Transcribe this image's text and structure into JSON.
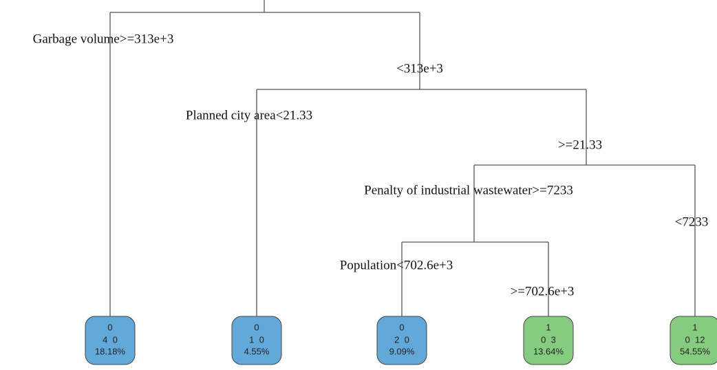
{
  "splits": [
    {
      "label": "Garbage volume>=313e+3"
    },
    {
      "label": "<313e+3"
    },
    {
      "label": "Planned city area<21.33"
    },
    {
      "label": ">=21.33"
    },
    {
      "label": "Penalty of industrial wastewater>=7233"
    },
    {
      "label": "<7233"
    },
    {
      "label": "Population<702.6e+3"
    },
    {
      "label": ">=702.6e+3"
    }
  ],
  "leaves": [
    {
      "class": "0",
      "counts": "4  0",
      "percent": "18.18%"
    },
    {
      "class": "0",
      "counts": "1  0",
      "percent": "4.55%"
    },
    {
      "class": "0",
      "counts": "2  0",
      "percent": "9.09%"
    },
    {
      "class": "1",
      "counts": "0  3",
      "percent": "13.64%"
    },
    {
      "class": "1",
      "counts": "0  12",
      "percent": "54.55%"
    }
  ]
}
